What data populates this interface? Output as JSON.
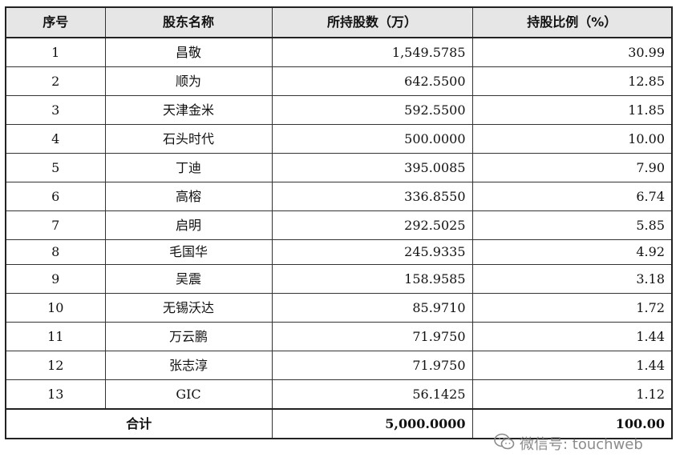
{
  "table": {
    "headers": [
      "序号",
      "股东名称",
      "所持股数（万）",
      "持股比例（%）"
    ],
    "rows": [
      {
        "idx": "1",
        "name": "昌敬",
        "shares": "1,549.5785",
        "ratio": "30.99"
      },
      {
        "idx": "2",
        "name": "顺为",
        "shares": "642.5500",
        "ratio": "12.85"
      },
      {
        "idx": "3",
        "name": "天津金米",
        "shares": "592.5500",
        "ratio": "11.85"
      },
      {
        "idx": "4",
        "name": "石头时代",
        "shares": "500.0000",
        "ratio": "10.00"
      },
      {
        "idx": "5",
        "name": "丁迪",
        "shares": "395.0085",
        "ratio": "7.90"
      },
      {
        "idx": "6",
        "name": "高榕",
        "shares": "336.8550",
        "ratio": "6.74"
      },
      {
        "idx": "7",
        "name": "启明",
        "shares": "292.5025",
        "ratio": "5.85"
      },
      {
        "idx": "8",
        "name": "毛国华",
        "shares": "245.9335",
        "ratio": "4.92"
      },
      {
        "idx": "9",
        "name": "吴震",
        "shares": "158.9585",
        "ratio": "3.18"
      },
      {
        "idx": "10",
        "name": "无锡沃达",
        "shares": "85.9710",
        "ratio": "1.72"
      },
      {
        "idx": "11",
        "name": "万云鹏",
        "shares": "71.9750",
        "ratio": "1.44"
      },
      {
        "idx": "12",
        "name": "张志淳",
        "shares": "71.9750",
        "ratio": "1.44"
      },
      {
        "idx": "13",
        "name": "GIC",
        "shares": "56.1425",
        "ratio": "1.12"
      }
    ],
    "total": {
      "label": "合计",
      "shares": "5,000.0000",
      "ratio": "100.00"
    }
  },
  "watermark": {
    "text": "微信号: touchweb",
    "icon": "wechat-icon",
    "color": "#787878"
  }
}
